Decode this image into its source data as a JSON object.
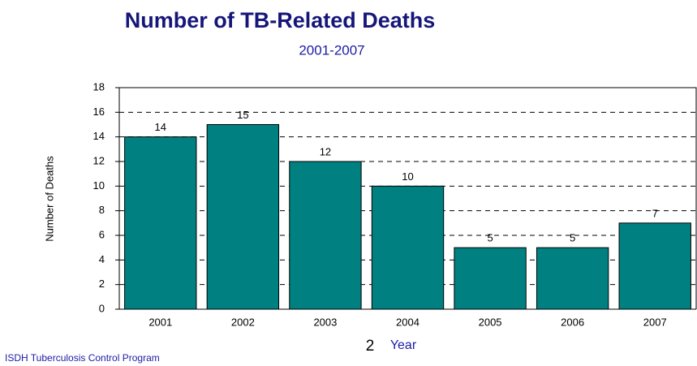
{
  "chart_data": {
    "type": "bar",
    "title": "Number of TB-Related Deaths",
    "subtitle": "2001-2007",
    "ylabel": "Number of Deaths",
    "xlabel": "Year",
    "page_number": "2",
    "categories": [
      "2001",
      "2002",
      "2003",
      "2004",
      "2005",
      "2006",
      "2007"
    ],
    "values": [
      14,
      15,
      12,
      10,
      5,
      5,
      7
    ],
    "color": "#008080",
    "ylim": [
      0,
      18
    ],
    "yticks": [
      0,
      2,
      4,
      6,
      8,
      10,
      12,
      14,
      16,
      18
    ],
    "grid": true
  },
  "footer": "ISDH Tuberculosis Control Program"
}
